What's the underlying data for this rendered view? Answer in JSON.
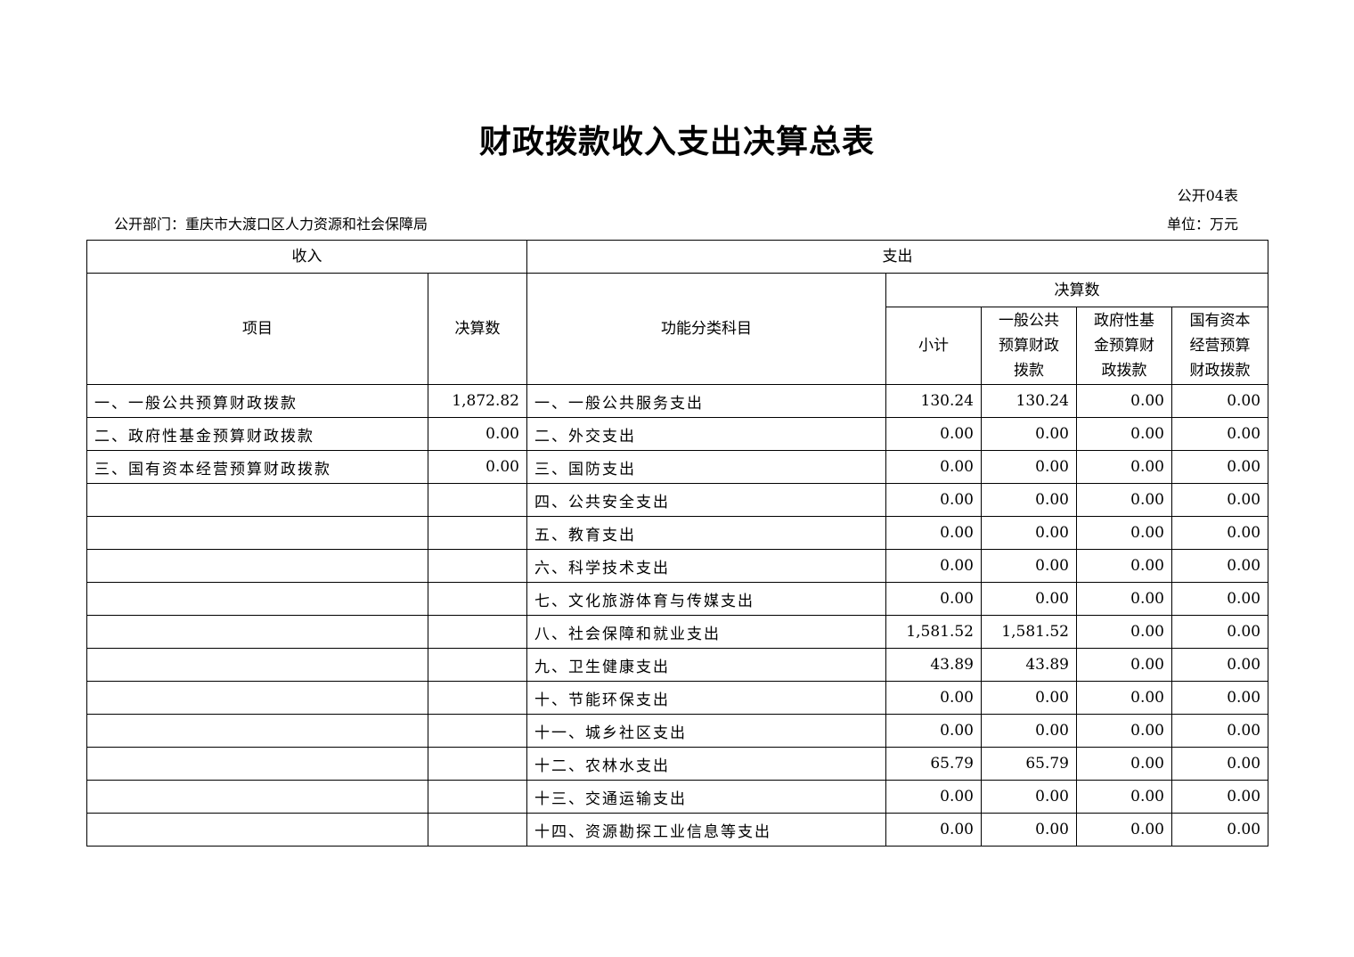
{
  "title": "财政拨款收入支出决算总表",
  "form_no": "公开04表",
  "department": "公开部门：重庆市大渡口区人力资源和社会保障局",
  "unit": "单位：万元",
  "headers": {
    "income": "收入",
    "expense": "支出",
    "item": "项目",
    "amount": "决算数",
    "function_category": "功能分类科目",
    "final_amount": "决算数",
    "subtotal": "小计",
    "general": "一般公共预算财政拨款",
    "gov_fund": "政府性基金预算财政拨款",
    "state_capital": "国有资本经营预算财政拨款"
  },
  "rows": [
    {
      "income_item": "一、一般公共预算财政拨款",
      "income_amount": "1,872.82",
      "category": "一、一般公共服务支出",
      "subtotal": "130.24",
      "general": "130.24",
      "gov_fund": "0.00",
      "state_capital": "0.00"
    },
    {
      "income_item": "二、政府性基金预算财政拨款",
      "income_amount": "0.00",
      "category": "二、外交支出",
      "subtotal": "0.00",
      "general": "0.00",
      "gov_fund": "0.00",
      "state_capital": "0.00"
    },
    {
      "income_item": "三、国有资本经营预算财政拨款",
      "income_amount": "0.00",
      "category": "三、国防支出",
      "subtotal": "0.00",
      "general": "0.00",
      "gov_fund": "0.00",
      "state_capital": "0.00"
    },
    {
      "income_item": "",
      "income_amount": "",
      "category": "四、公共安全支出",
      "subtotal": "0.00",
      "general": "0.00",
      "gov_fund": "0.00",
      "state_capital": "0.00"
    },
    {
      "income_item": "",
      "income_amount": "",
      "category": "五、教育支出",
      "subtotal": "0.00",
      "general": "0.00",
      "gov_fund": "0.00",
      "state_capital": "0.00"
    },
    {
      "income_item": "",
      "income_amount": "",
      "category": "六、科学技术支出",
      "subtotal": "0.00",
      "general": "0.00",
      "gov_fund": "0.00",
      "state_capital": "0.00"
    },
    {
      "income_item": "",
      "income_amount": "",
      "category": "七、文化旅游体育与传媒支出",
      "subtotal": "0.00",
      "general": "0.00",
      "gov_fund": "0.00",
      "state_capital": "0.00"
    },
    {
      "income_item": "",
      "income_amount": "",
      "category": "八、社会保障和就业支出",
      "subtotal": "1,581.52",
      "general": "1,581.52",
      "gov_fund": "0.00",
      "state_capital": "0.00"
    },
    {
      "income_item": "",
      "income_amount": "",
      "category": "九、卫生健康支出",
      "subtotal": "43.89",
      "general": "43.89",
      "gov_fund": "0.00",
      "state_capital": "0.00"
    },
    {
      "income_item": "",
      "income_amount": "",
      "category": "十、节能环保支出",
      "subtotal": "0.00",
      "general": "0.00",
      "gov_fund": "0.00",
      "state_capital": "0.00"
    },
    {
      "income_item": "",
      "income_amount": "",
      "category": "十一、城乡社区支出",
      "subtotal": "0.00",
      "general": "0.00",
      "gov_fund": "0.00",
      "state_capital": "0.00"
    },
    {
      "income_item": "",
      "income_amount": "",
      "category": "十二、农林水支出",
      "subtotal": "65.79",
      "general": "65.79",
      "gov_fund": "0.00",
      "state_capital": "0.00"
    },
    {
      "income_item": "",
      "income_amount": "",
      "category": "十三、交通运输支出",
      "subtotal": "0.00",
      "general": "0.00",
      "gov_fund": "0.00",
      "state_capital": "0.00"
    },
    {
      "income_item": "",
      "income_amount": "",
      "category": "十四、资源勘探工业信息等支出",
      "subtotal": "0.00",
      "general": "0.00",
      "gov_fund": "0.00",
      "state_capital": "0.00"
    }
  ]
}
